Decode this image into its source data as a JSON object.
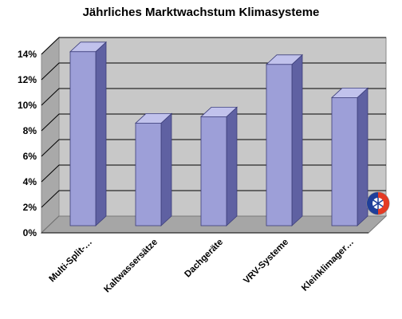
{
  "chart_data": {
    "type": "bar",
    "title": "Jährliches Marktwachstum Klimasysteme",
    "categories": [
      "Multi-Split-…",
      "Kaltwassersätze",
      "Dachgeräte",
      "VRV-Systeme",
      "Kleinklimager…"
    ],
    "values": [
      14.2,
      8.6,
      9.1,
      13.2,
      10.6
    ],
    "value_unit": "%",
    "yticks": [
      "0%",
      "2%",
      "4%",
      "6%",
      "8%",
      "10%",
      "12%",
      "14%"
    ],
    "ylim": [
      0,
      14
    ],
    "xlabel": "",
    "ylabel": "",
    "grid": true,
    "legend": "none",
    "style": "3d-column",
    "colors": {
      "bar_front": "#9d9fd8",
      "bar_side": "#5f61a2",
      "bar_top": "#c1c2ec",
      "wall": "#c8c8c8",
      "floor": "#a6a6a6",
      "grid": "#000000"
    }
  },
  "logo": {
    "icon": "badge-logo-icon",
    "colors": [
      "#1f3f9a",
      "#e43a24"
    ]
  }
}
